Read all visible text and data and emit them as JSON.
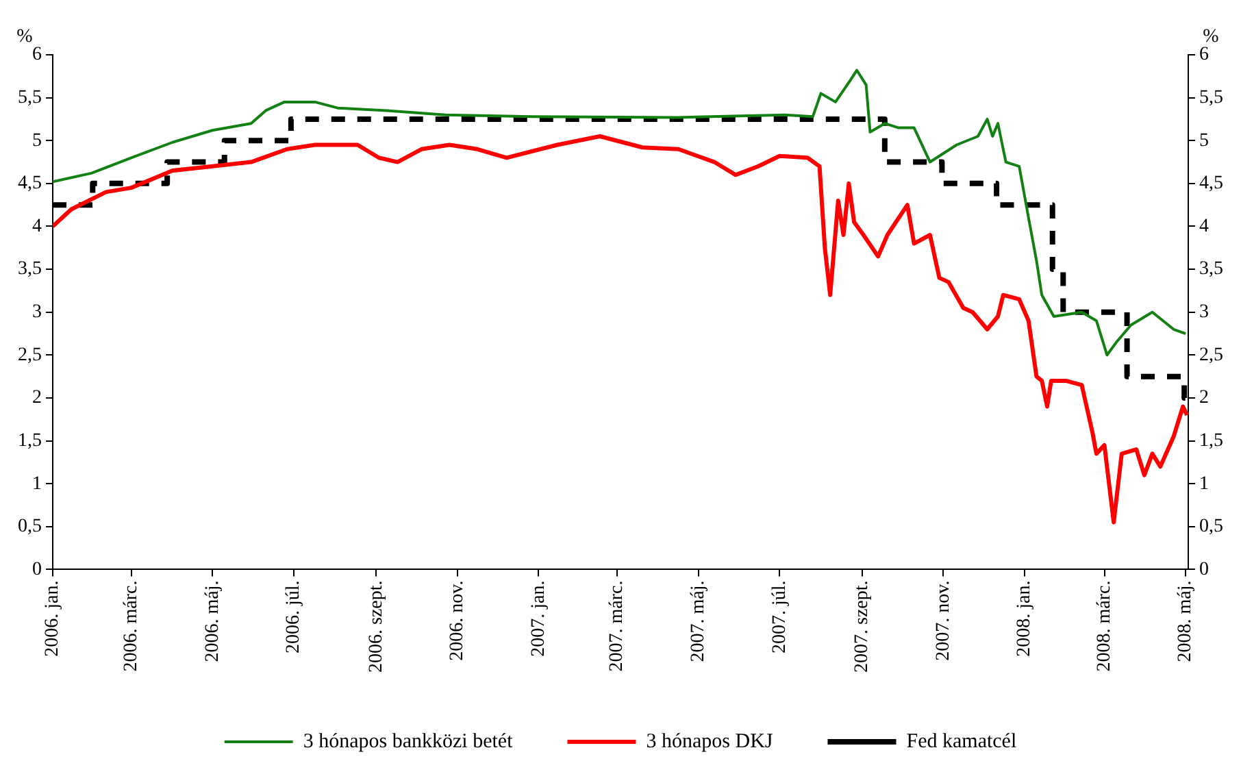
{
  "chart_data": {
    "type": "line",
    "ylabel": "%",
    "y2label": "%",
    "xlim": [
      "2006-01-01",
      "2008-05-03"
    ],
    "xticks": [
      {
        "value": "2006-01-01",
        "label": "2006. jan."
      },
      {
        "value": "2006-03-01",
        "label": "2006. márc."
      },
      {
        "value": "2006-05-01",
        "label": "2006. máj."
      },
      {
        "value": "2006-07-01",
        "label": "2006. júl."
      },
      {
        "value": "2006-09-01",
        "label": "2006. szept."
      },
      {
        "value": "2006-11-01",
        "label": "2006. nov."
      },
      {
        "value": "2007-01-01",
        "label": "2007. jan."
      },
      {
        "value": "2007-03-01",
        "label": "2007. márc."
      },
      {
        "value": "2007-05-01",
        "label": "2007. máj."
      },
      {
        "value": "2007-07-01",
        "label": "2007. júl."
      },
      {
        "value": "2007-09-01",
        "label": "2007. szept."
      },
      {
        "value": "2007-11-01",
        "label": "2007. nov."
      },
      {
        "value": "2008-01-01",
        "label": "2008. jan."
      },
      {
        "value": "2008-03-01",
        "label": "2008. márc."
      },
      {
        "value": "2008-05-01",
        "label": "2008. máj."
      }
    ],
    "ylim": [
      0,
      6
    ],
    "yticks": [
      0,
      {
        "value": 0.5,
        "label": "0,5"
      },
      1,
      {
        "value": 1.5,
        "label": "1,5"
      },
      2,
      {
        "value": 2.5,
        "label": "2,5"
      },
      3,
      {
        "value": 3.5,
        "label": "3,5"
      },
      4,
      {
        "value": 4.5,
        "label": "4,5"
      },
      5,
      {
        "value": 5.5,
        "label": "5,5"
      },
      6
    ],
    "y2lim": [
      0,
      6
    ],
    "y2ticks": [
      0,
      {
        "value": 0.5,
        "label": "0,5"
      },
      1,
      {
        "value": 1.5,
        "label": "1,5"
      },
      2,
      {
        "value": 2.5,
        "label": "2,5"
      },
      3,
      {
        "value": 3.5,
        "label": "3,5"
      },
      4,
      {
        "value": 4.5,
        "label": "4,5"
      },
      5,
      {
        "value": 5.5,
        "label": "5,5"
      },
      6
    ],
    "grid": false,
    "legend": "bottom",
    "marker": "none",
    "series": [
      {
        "name": "3 hónapos bankközi betét",
        "color": "#138013",
        "line_style": "solid",
        "x": [
          "2006-01-01",
          "2006-01-30",
          "2006-03-01",
          "2006-04-01",
          "2006-05-01",
          "2006-05-30",
          "2006-06-10",
          "2006-06-24",
          "2006-07-17",
          "2006-08-03",
          "2006-09-09",
          "2006-10-23",
          "2006-12-27",
          "2007-04-15",
          "2007-07-05",
          "2007-07-26",
          "2007-08-01",
          "2007-08-12",
          "2007-08-23",
          "2007-08-28",
          "2007-09-04",
          "2007-09-07",
          "2007-09-18",
          "2007-09-28",
          "2007-10-10",
          "2007-10-22",
          "2007-11-11",
          "2007-11-27",
          "2007-12-04",
          "2007-12-08",
          "2007-12-12",
          "2007-12-18",
          "2007-12-28",
          "2008-01-04",
          "2008-01-10",
          "2008-01-14",
          "2008-01-23",
          "2008-02-13",
          "2008-02-24",
          "2008-03-03",
          "2008-03-10",
          "2008-03-21",
          "2008-04-06",
          "2008-04-22",
          "2008-05-01"
        ],
        "values": [
          4.52,
          4.62,
          4.8,
          4.98,
          5.12,
          5.2,
          5.35,
          5.45,
          5.45,
          5.38,
          5.35,
          5.3,
          5.28,
          5.27,
          5.3,
          5.28,
          5.55,
          5.45,
          5.7,
          5.82,
          5.65,
          5.1,
          5.2,
          5.15,
          5.15,
          4.75,
          4.95,
          5.05,
          5.25,
          5.05,
          5.2,
          4.75,
          4.7,
          4.1,
          3.6,
          3.2,
          2.95,
          3.0,
          2.9,
          2.5,
          2.65,
          2.85,
          3.0,
          2.8,
          2.75
        ]
      },
      {
        "name": "3 hónapos DKJ",
        "color": "#ff0000",
        "line_style": "solid",
        "x": [
          "2006-01-01",
          "2006-01-15",
          "2006-02-10",
          "2006-03-01",
          "2006-04-01",
          "2006-05-01",
          "2006-05-30",
          "2006-06-26",
          "2006-07-17",
          "2006-08-18",
          "2006-09-03",
          "2006-09-17",
          "2006-10-05",
          "2006-10-26",
          "2006-11-16",
          "2006-12-08",
          "2007-01-15",
          "2007-02-16",
          "2007-03-20",
          "2007-04-16",
          "2007-05-13",
          "2007-05-29",
          "2007-06-15",
          "2007-07-01",
          "2007-07-22",
          "2007-07-31",
          "2007-08-04",
          "2007-08-08",
          "2007-08-14",
          "2007-08-18",
          "2007-08-22",
          "2007-08-26",
          "2007-09-02",
          "2007-09-13",
          "2007-09-20",
          "2007-10-05",
          "2007-10-10",
          "2007-10-22",
          "2007-10-29",
          "2007-11-05",
          "2007-11-16",
          "2007-11-23",
          "2007-12-04",
          "2007-12-12",
          "2007-12-16",
          "2007-12-28",
          "2008-01-04",
          "2008-01-10",
          "2008-01-14",
          "2008-01-18",
          "2008-01-21",
          "2008-02-01",
          "2008-02-13",
          "2008-02-21",
          "2008-02-24",
          "2008-03-01",
          "2008-03-08",
          "2008-03-14",
          "2008-03-25",
          "2008-03-31",
          "2008-04-06",
          "2008-04-12",
          "2008-04-22",
          "2008-04-29",
          "2008-05-02"
        ],
        "values": [
          4.0,
          4.2,
          4.4,
          4.45,
          4.65,
          4.7,
          4.75,
          4.9,
          4.95,
          4.95,
          4.8,
          4.75,
          4.9,
          4.95,
          4.9,
          4.8,
          4.95,
          5.05,
          4.92,
          4.9,
          4.75,
          4.6,
          4.7,
          4.82,
          4.8,
          4.7,
          3.75,
          3.2,
          4.3,
          3.9,
          4.5,
          4.05,
          3.9,
          3.65,
          3.9,
          4.25,
          3.8,
          3.9,
          3.4,
          3.35,
          3.05,
          3.0,
          2.8,
          2.95,
          3.2,
          3.15,
          2.9,
          2.25,
          2.2,
          1.9,
          2.2,
          2.2,
          2.15,
          1.6,
          1.35,
          1.45,
          0.55,
          1.35,
          1.4,
          1.1,
          1.35,
          1.2,
          1.55,
          1.9,
          1.8
        ]
      },
      {
        "name": "Fed kamatcél",
        "type": "step",
        "color": "#000000",
        "line_style": "dashed",
        "x": [
          "2006-01-01",
          "2006-01-31",
          "2006-03-28",
          "2006-05-10",
          "2006-06-29",
          "2007-09-18",
          "2007-10-31",
          "2007-12-11",
          "2008-01-22",
          "2008-01-30",
          "2008-03-18",
          "2008-04-30",
          "2008-05-03"
        ],
        "values": [
          4.25,
          4.5,
          4.75,
          5.0,
          5.25,
          4.75,
          4.5,
          4.25,
          3.5,
          3.0,
          2.25,
          2.0,
          2.0
        ]
      }
    ]
  }
}
